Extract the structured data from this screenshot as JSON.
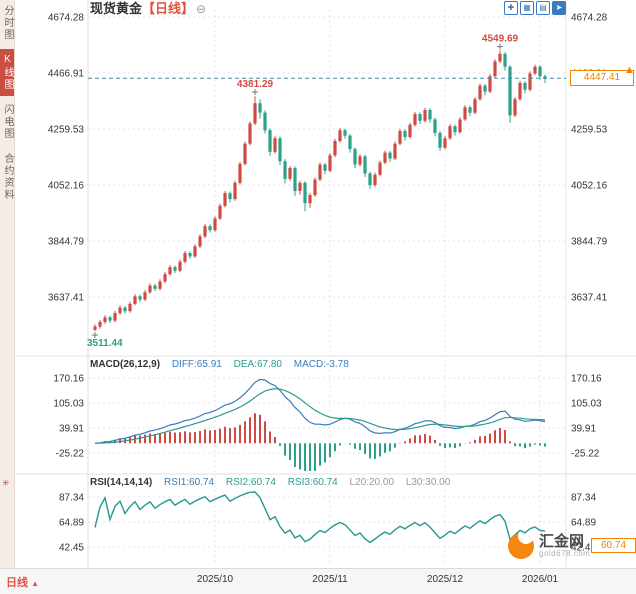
{
  "sidebar": {
    "tabs": [
      {
        "label": "分时图",
        "active": false
      },
      {
        "label": "K线图",
        "active": true
      },
      {
        "label": "闪电图",
        "active": false
      },
      {
        "label": "合约资料",
        "active": false
      }
    ]
  },
  "header": {
    "title": "现货黄金",
    "period_tag": "【日线】",
    "collapse_icon": "⊖"
  },
  "toolbar": {
    "icons": [
      {
        "name": "crosshair",
        "glyph": "✚"
      },
      {
        "name": "indicators",
        "glyph": "▦"
      },
      {
        "name": "chart-grid",
        "glyph": "▤"
      },
      {
        "name": "forward",
        "glyph": "➤"
      }
    ]
  },
  "indicators": {
    "macd": {
      "title": "MACD(26,12,9)",
      "diff_label": "DIFF:65.91",
      "dea_label": "DEA:67.80",
      "macd_label": "MACD:-3.78",
      "diff": 65.91,
      "dea": 67.8,
      "macd": -3.78
    },
    "rsi": {
      "title": "RSI(14,14,14)",
      "rsi1_label": "RSI1:60.74",
      "rsi2_label": "RSI2:60.74",
      "rsi3_label": "RSI3:60.74",
      "l20_label": "L20:20.00",
      "l30_label": "L30:30.00",
      "rsi1": 60.74,
      "rsi2": 60.74,
      "rsi3": 60.74,
      "l20": 20.0,
      "l30": 30.0,
      "settings_icon": "✳"
    }
  },
  "markers": {
    "price_box": "4447.41",
    "rsi_box": "60.74",
    "latest_arrow": "▲"
  },
  "bottom_bar": {
    "period_label": "日线",
    "arrow": "▲"
  },
  "watermark": {
    "site_name": "汇金网",
    "site_url": "gold678.com"
  },
  "chart_data": {
    "type": "candlestick",
    "title": "现货黄金 日线",
    "legend_position": "none",
    "grid": true,
    "y_axis_ticks_main": [
      4674.28,
      4466.91,
      4259.53,
      4052.16,
      3844.79,
      3637.41
    ],
    "y_axis_ticks_macd": [
      170.16,
      105.03,
      39.91,
      -25.22
    ],
    "y_axis_ticks_rsi": [
      87.34,
      64.89,
      42.45
    ],
    "x_labels": [
      {
        "label": "2025/10",
        "index": 24
      },
      {
        "label": "2025/11",
        "index": 47
      },
      {
        "label": "2025/12",
        "index": 70
      },
      {
        "label": "2026/01",
        "index": 89
      }
    ],
    "annotations": [
      {
        "text": "3511.44",
        "index": 0,
        "type": "low"
      },
      {
        "text": "4381.29",
        "index": 32,
        "type": "high"
      },
      {
        "text": "4549.69",
        "index": 81,
        "type": "high"
      }
    ],
    "current_price": 4447.41,
    "colors": {
      "up": "#cf4b41",
      "down": "#2aa188",
      "diff": "#3a7bbf",
      "dea": "#2a9d8f",
      "rsi1": "#3a7bbf",
      "rsi2": "#2a9d8f",
      "rsi3": "#2a9d8f",
      "grid": "#e4e4e4",
      "dashed": "#3a8f9e",
      "accent": "#f08300"
    },
    "candles": [
      [
        3516,
        3536,
        3511.44,
        3528
      ],
      [
        3528,
        3553,
        3520,
        3545
      ],
      [
        3545,
        3570,
        3538,
        3562
      ],
      [
        3562,
        3568,
        3541,
        3550
      ],
      [
        3550,
        3586,
        3544,
        3578
      ],
      [
        3578,
        3606,
        3571,
        3598
      ],
      [
        3598,
        3604,
        3576,
        3585
      ],
      [
        3585,
        3620,
        3579,
        3612
      ],
      [
        3612,
        3648,
        3606,
        3640
      ],
      [
        3640,
        3646,
        3619,
        3628
      ],
      [
        3628,
        3663,
        3622,
        3655
      ],
      [
        3655,
        3688,
        3649,
        3680
      ],
      [
        3680,
        3686,
        3659,
        3668
      ],
      [
        3668,
        3703,
        3662,
        3695
      ],
      [
        3695,
        3730,
        3689,
        3722
      ],
      [
        3722,
        3756,
        3716,
        3748
      ],
      [
        3748,
        3754,
        3726,
        3735
      ],
      [
        3735,
        3776,
        3729,
        3768
      ],
      [
        3768,
        3808,
        3762,
        3800
      ],
      [
        3800,
        3806,
        3779,
        3788
      ],
      [
        3788,
        3833,
        3782,
        3825
      ],
      [
        3825,
        3870,
        3819,
        3862
      ],
      [
        3862,
        3908,
        3856,
        3900
      ],
      [
        3900,
        3906,
        3876,
        3885
      ],
      [
        3885,
        3936,
        3879,
        3928
      ],
      [
        3928,
        3983,
        3922,
        3975
      ],
      [
        3975,
        4030,
        3969,
        4022
      ],
      [
        4022,
        4028,
        3988,
        4000
      ],
      [
        4000,
        4068,
        3994,
        4060
      ],
      [
        4060,
        4138,
        4054,
        4130
      ],
      [
        4130,
        4213,
        4124,
        4205
      ],
      [
        4205,
        4288,
        4199,
        4280
      ],
      [
        4280,
        4381.29,
        4274,
        4355
      ],
      [
        4355,
        4369,
        4298,
        4320
      ],
      [
        4320,
        4328,
        4243,
        4255
      ],
      [
        4255,
        4262,
        4160,
        4175
      ],
      [
        4175,
        4233,
        4168,
        4225
      ],
      [
        4225,
        4232,
        4126,
        4140
      ],
      [
        4140,
        4148,
        4058,
        4075
      ],
      [
        4075,
        4123,
        4068,
        4115
      ],
      [
        4115,
        4121,
        4012,
        4030
      ],
      [
        4030,
        4068,
        4016,
        4060
      ],
      [
        4060,
        4066,
        3955,
        3985
      ],
      [
        3985,
        4023,
        3968,
        4015
      ],
      [
        4015,
        4080,
        4008,
        4072
      ],
      [
        4072,
        4136,
        4066,
        4128
      ],
      [
        4128,
        4134,
        4092,
        4105
      ],
      [
        4105,
        4170,
        4099,
        4162
      ],
      [
        4162,
        4223,
        4156,
        4215
      ],
      [
        4215,
        4263,
        4209,
        4255
      ],
      [
        4255,
        4261,
        4224,
        4235
      ],
      [
        4235,
        4241,
        4172,
        4185
      ],
      [
        4185,
        4191,
        4115,
        4128
      ],
      [
        4128,
        4166,
        4121,
        4158
      ],
      [
        4158,
        4164,
        4082,
        4095
      ],
      [
        4095,
        4101,
        4038,
        4052
      ],
      [
        4052,
        4098,
        4045,
        4090
      ],
      [
        4090,
        4143,
        4084,
        4135
      ],
      [
        4135,
        4180,
        4129,
        4172
      ],
      [
        4172,
        4178,
        4138,
        4150
      ],
      [
        4150,
        4213,
        4144,
        4205
      ],
      [
        4205,
        4260,
        4199,
        4252
      ],
      [
        4252,
        4258,
        4217,
        4230
      ],
      [
        4230,
        4283,
        4224,
        4275
      ],
      [
        4275,
        4323,
        4269,
        4315
      ],
      [
        4315,
        4321,
        4278,
        4290
      ],
      [
        4290,
        4338,
        4284,
        4330
      ],
      [
        4330,
        4336,
        4282,
        4295
      ],
      [
        4295,
        4301,
        4232,
        4245
      ],
      [
        4245,
        4251,
        4178,
        4190
      ],
      [
        4190,
        4233,
        4184,
        4225
      ],
      [
        4225,
        4278,
        4219,
        4270
      ],
      [
        4270,
        4276,
        4235,
        4248
      ],
      [
        4248,
        4303,
        4242,
        4295
      ],
      [
        4295,
        4348,
        4289,
        4340
      ],
      [
        4340,
        4346,
        4307,
        4320
      ],
      [
        4320,
        4378,
        4314,
        4370
      ],
      [
        4370,
        4428,
        4364,
        4420
      ],
      [
        4420,
        4426,
        4385,
        4398
      ],
      [
        4398,
        4463,
        4392,
        4455
      ],
      [
        4455,
        4518,
        4449,
        4510
      ],
      [
        4510,
        4549.69,
        4504,
        4538
      ],
      [
        4538,
        4544,
        4476,
        4490
      ],
      [
        4490,
        4496,
        4282,
        4310
      ],
      [
        4310,
        4378,
        4304,
        4370
      ],
      [
        4370,
        4438,
        4364,
        4430
      ],
      [
        4430,
        4436,
        4392,
        4405
      ],
      [
        4405,
        4473,
        4399,
        4465
      ],
      [
        4465,
        4498,
        4459,
        4490
      ],
      [
        4490,
        4496,
        4442,
        4455
      ],
      [
        4455,
        4461,
        4430,
        4447.41
      ]
    ]
  }
}
